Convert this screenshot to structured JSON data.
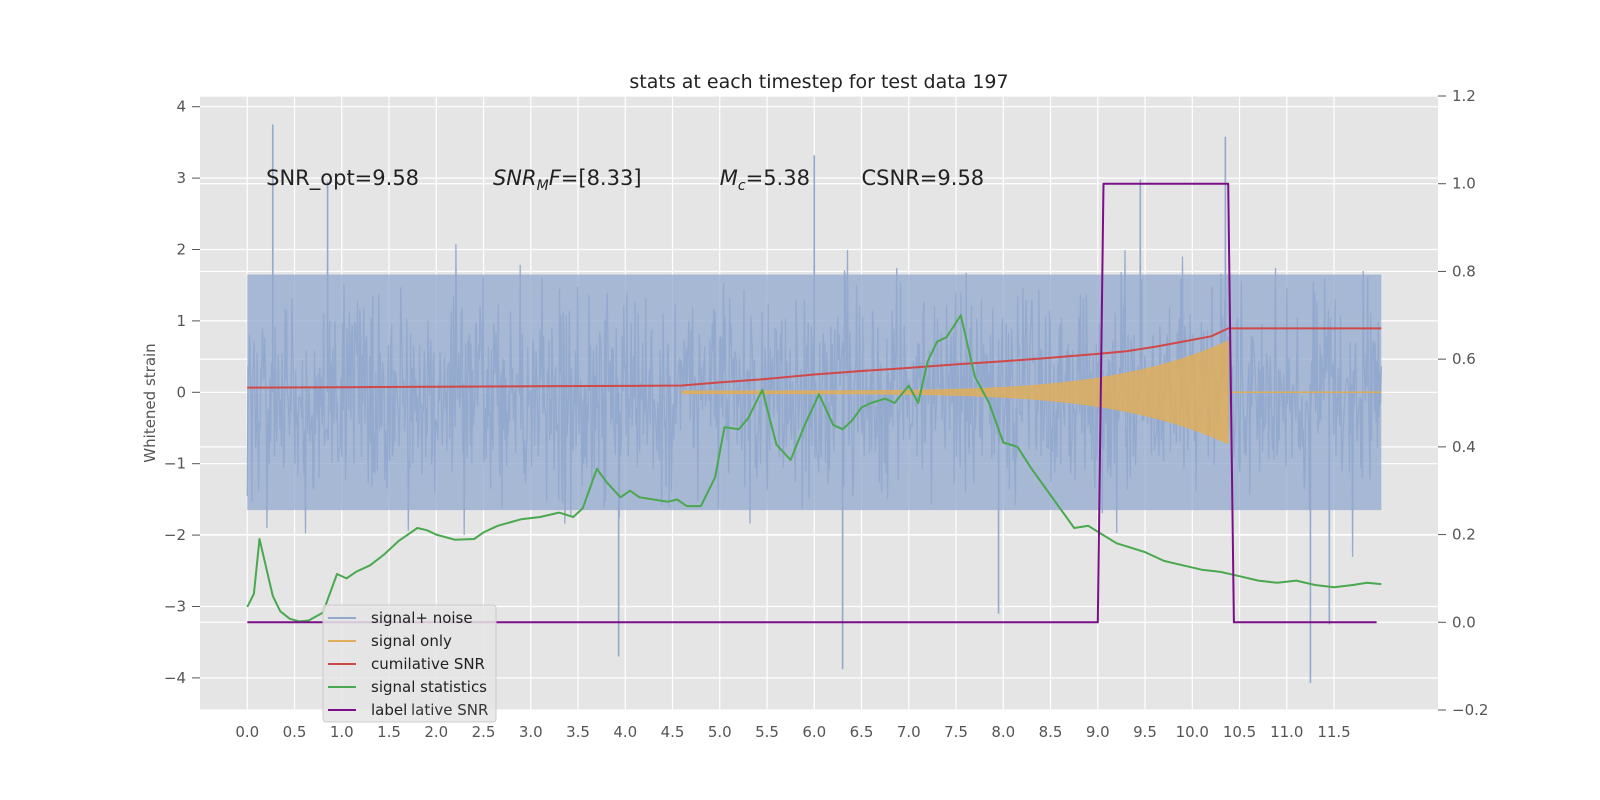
{
  "chart_data": {
    "type": "line",
    "title": "stats at each timestep for test data 197",
    "ylabel": "Whitened strain",
    "xlabel": "",
    "xlim": [
      -0.5,
      12.6
    ],
    "ylim": [
      -4.45,
      4.15
    ],
    "y2lim": [
      -0.2,
      1.2
    ],
    "grid": true,
    "xticks": [
      "0.0",
      "0.5",
      "1.0",
      "1.5",
      "2.0",
      "2.5",
      "3.0",
      "3.5",
      "4.0",
      "4.5",
      "5.0",
      "5.5",
      "6.0",
      "6.5",
      "7.0",
      "7.5",
      "8.0",
      "8.5",
      "9.0",
      "9.5",
      "10.0",
      "10.5",
      "11.0",
      "11.5"
    ],
    "yticks": [
      "4",
      "3",
      "2",
      "1",
      "0",
      "−1",
      "−2",
      "−3",
      "−4"
    ],
    "y2ticks": [
      "1.2",
      "1.0",
      "0.8",
      "0.6",
      "0.4",
      "0.2",
      "0.0",
      "−0.2"
    ],
    "annotations": [
      {
        "text": "SNR_opt=9.58",
        "x": 0.2,
        "y": 2.9
      },
      {
        "text": "SNRₘF=[8.33]",
        "x": 2.6,
        "y": 2.9,
        "main": "SNR",
        "sub": "M",
        "tail": "F=[8.33]"
      },
      {
        "text": "Mᴄ=5.38",
        "x": 5.0,
        "y": 2.9,
        "main": "M",
        "sub": "c",
        "tail": "=5.38"
      },
      {
        "text": "CSNR=9.58",
        "x": 6.5,
        "y": 2.9
      }
    ],
    "legend": {
      "placement": "lower-left",
      "entries": [
        "signal+ noise",
        "signal only",
        "cumilative SNR",
        "signal statistics",
        "label"
      ],
      "ghost_text": "lative SNR"
    },
    "series": [
      {
        "name": "signal+ noise",
        "axis": "left",
        "color": "#92a8cd",
        "noise": {
          "t_start": 0.0,
          "t_end": 12.0,
          "n": 1500,
          "envelope": 1.65,
          "spikes": [
            [
              0.27,
              3.75
            ],
            [
              6.0,
              3.32
            ],
            [
              10.35,
              3.58
            ],
            [
              3.93,
              -3.7
            ],
            [
              6.3,
              -3.88
            ],
            [
              11.25,
              -4.07
            ],
            [
              11.45,
              -3.25
            ],
            [
              7.95,
              -3.1
            ],
            [
              0.85,
              2.95
            ],
            [
              9.45,
              2.98
            ]
          ]
        }
      },
      {
        "name": "signal only",
        "axis": "left",
        "color": "#dfae5c",
        "chirp": {
          "t_start": 4.6,
          "t_merge": 10.38,
          "t_end": 12.0,
          "amp_start": 0.02,
          "amp_peak": 0.72
        }
      },
      {
        "name": "cumilative SNR",
        "axis": "right",
        "color": "#d04848",
        "x": [
          0.0,
          1.0,
          2.0,
          3.0,
          4.0,
          4.6,
          5.0,
          5.5,
          6.0,
          6.5,
          7.0,
          7.5,
          8.0,
          8.5,
          9.0,
          9.3,
          9.6,
          9.9,
          10.2,
          10.38,
          10.5,
          11.0,
          11.5,
          12.0
        ],
        "values": [
          0.535,
          0.536,
          0.537,
          0.538,
          0.539,
          0.54,
          0.547,
          0.555,
          0.565,
          0.573,
          0.58,
          0.588,
          0.595,
          0.603,
          0.612,
          0.618,
          0.628,
          0.64,
          0.652,
          0.67,
          0.67,
          0.67,
          0.67,
          0.67
        ]
      },
      {
        "name": "signal statistics",
        "axis": "right",
        "color": "#4aa84f",
        "x": [
          0.0,
          0.07,
          0.13,
          0.27,
          0.35,
          0.45,
          0.55,
          0.65,
          0.8,
          0.95,
          1.05,
          1.15,
          1.3,
          1.45,
          1.6,
          1.7,
          1.8,
          1.9,
          2.0,
          2.2,
          2.4,
          2.5,
          2.65,
          2.75,
          2.9,
          3.1,
          3.3,
          3.45,
          3.55,
          3.7,
          3.8,
          3.95,
          4.05,
          4.15,
          4.3,
          4.45,
          4.55,
          4.65,
          4.8,
          4.95,
          5.05,
          5.2,
          5.3,
          5.45,
          5.6,
          5.75,
          5.9,
          6.05,
          6.2,
          6.3,
          6.4,
          6.5,
          6.6,
          6.75,
          6.85,
          7.0,
          7.1,
          7.2,
          7.3,
          7.4,
          7.55,
          7.7,
          7.85,
          8.0,
          8.15,
          8.3,
          8.45,
          8.6,
          8.75,
          8.9,
          9.05,
          9.2,
          9.35,
          9.5,
          9.7,
          9.9,
          10.1,
          10.3,
          10.5,
          10.7,
          10.9,
          11.1,
          11.3,
          11.5,
          11.7,
          11.85,
          12.0
        ],
        "values": [
          0.035,
          0.065,
          0.19,
          0.06,
          0.025,
          0.008,
          0.002,
          0.004,
          0.022,
          0.11,
          0.1,
          0.115,
          0.13,
          0.155,
          0.185,
          0.2,
          0.215,
          0.21,
          0.2,
          0.188,
          0.19,
          0.205,
          0.22,
          0.226,
          0.235,
          0.24,
          0.25,
          0.24,
          0.26,
          0.35,
          0.32,
          0.285,
          0.3,
          0.285,
          0.28,
          0.275,
          0.28,
          0.265,
          0.265,
          0.33,
          0.445,
          0.44,
          0.465,
          0.53,
          0.405,
          0.37,
          0.45,
          0.52,
          0.45,
          0.44,
          0.46,
          0.49,
          0.5,
          0.51,
          0.5,
          0.54,
          0.5,
          0.595,
          0.64,
          0.65,
          0.7,
          0.56,
          0.5,
          0.41,
          0.4,
          0.35,
          0.305,
          0.26,
          0.215,
          0.22,
          0.2,
          0.18,
          0.17,
          0.16,
          0.14,
          0.13,
          0.12,
          0.115,
          0.105,
          0.095,
          0.09,
          0.095,
          0.085,
          0.08,
          0.085,
          0.09,
          0.087
        ]
      },
      {
        "name": "label",
        "axis": "right",
        "color": "#7b0f88",
        "x": [
          0.0,
          9.0,
          9.06,
          10.38,
          10.44,
          11.95
        ],
        "values": [
          0.0,
          0.0,
          1.0,
          1.0,
          0.0,
          0.0
        ]
      }
    ]
  }
}
